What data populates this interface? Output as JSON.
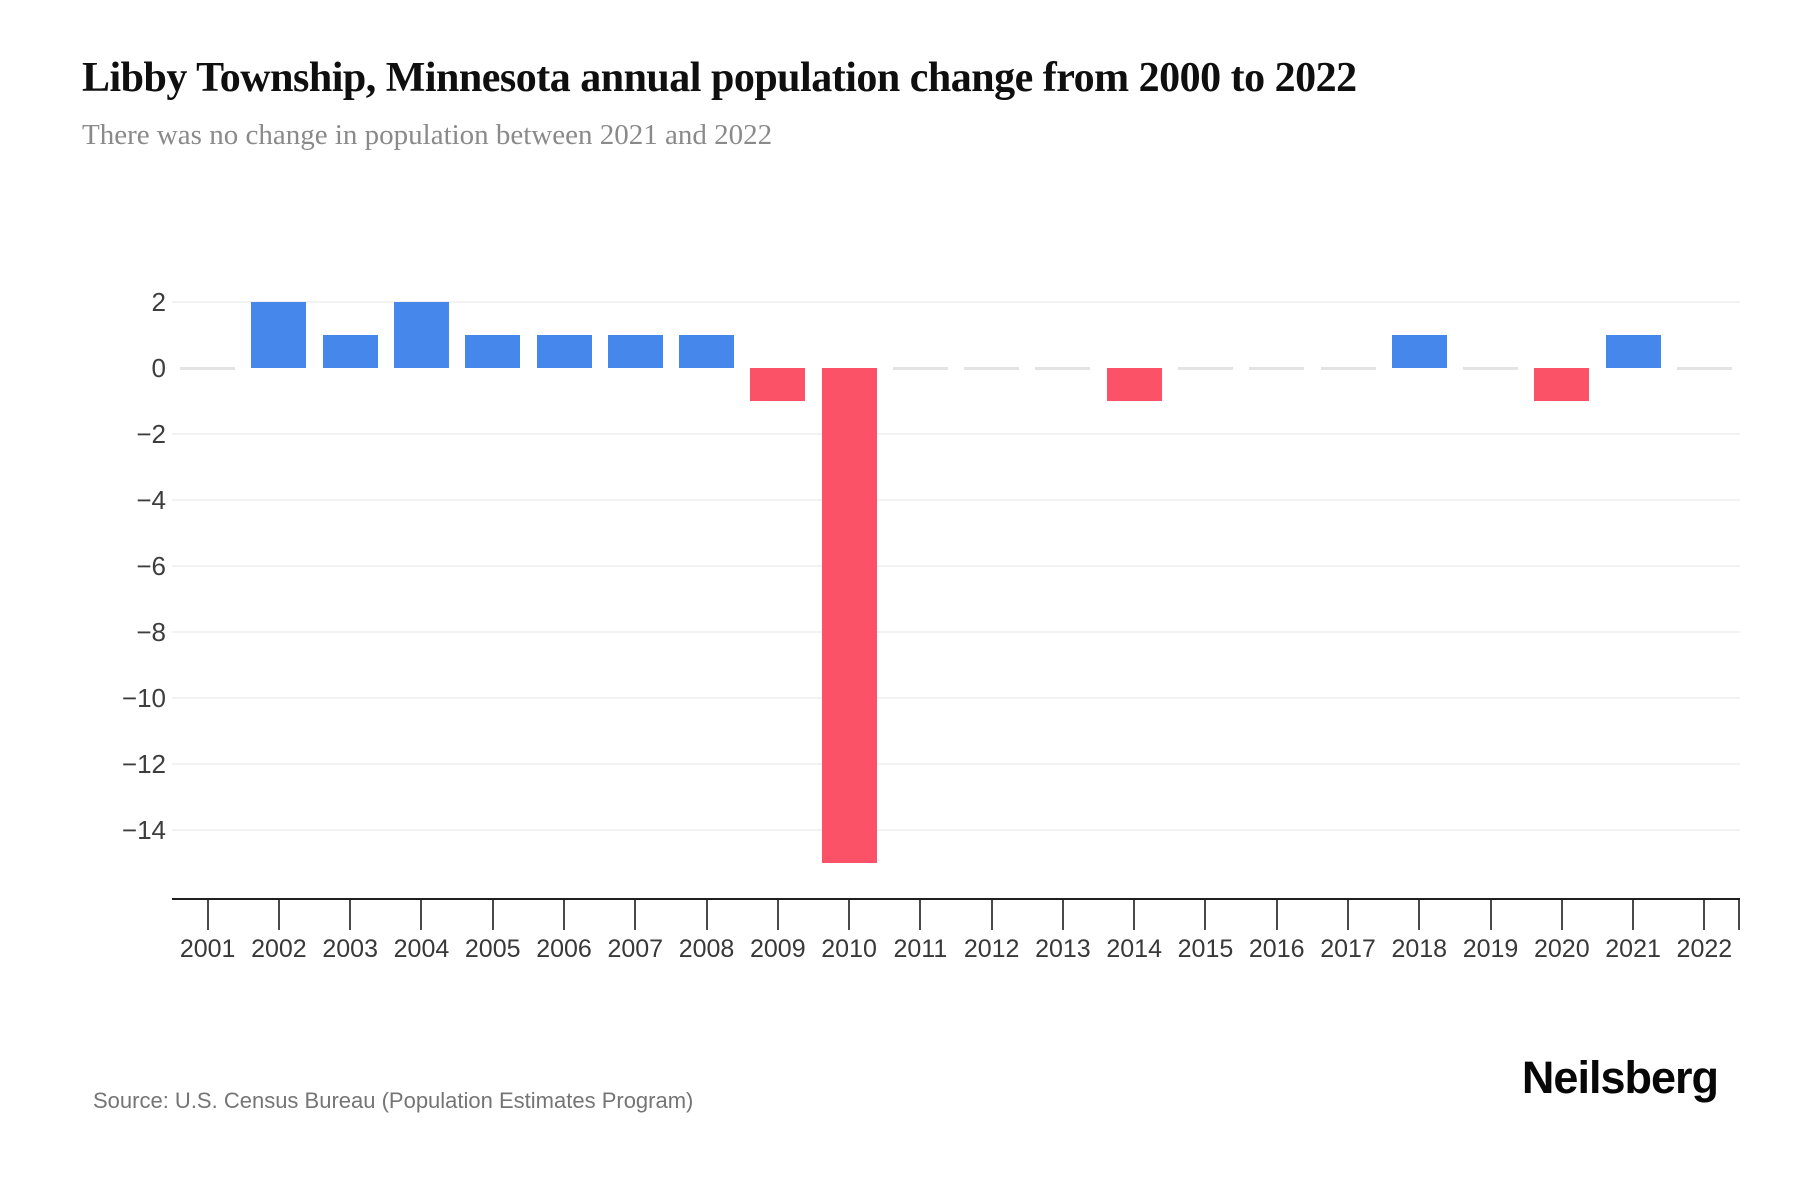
{
  "header": {
    "title": "Libby Township, Minnesota annual population change from 2000 to 2022",
    "subtitle": "There was no change in population between 2021 and 2022"
  },
  "footer": {
    "source": "Source: U.S. Census Bureau (Population Estimates Program)",
    "brand": "Neilsberg"
  },
  "colors": {
    "positive_bar": "#4687EB",
    "negative_bar": "#FB5267",
    "zero_dash": "#E3E3E3",
    "gridline": "#F2F2F2",
    "axis_line": "#1F1F1F",
    "tick": "#4A4A4A",
    "title_text": "#0F0F0F",
    "subtitle_text": "#8A8A8A",
    "source_text": "#757575"
  },
  "chart_data": {
    "type": "bar",
    "title": "Libby Township, Minnesota annual population change from 2000 to 2022",
    "subtitle": "There was no change in population between 2021 and 2022",
    "xlabel": "",
    "ylabel": "",
    "categories": [
      "2001",
      "2002",
      "2003",
      "2004",
      "2005",
      "2006",
      "2007",
      "2008",
      "2009",
      "2010",
      "2011",
      "2012",
      "2013",
      "2014",
      "2015",
      "2016",
      "2017",
      "2018",
      "2019",
      "2020",
      "2021",
      "2022"
    ],
    "values": [
      0,
      2,
      1,
      2,
      1,
      1,
      1,
      1,
      -1,
      -15,
      0,
      0,
      0,
      -1,
      0,
      0,
      0,
      1,
      0,
      -1,
      1,
      0
    ],
    "yticks": [
      2,
      0,
      -2,
      -4,
      -6,
      -8,
      -10,
      -12,
      -14
    ],
    "ylim": [
      -16,
      2.6
    ],
    "grid": true,
    "legend": "none",
    "positive_color": "#4687EB",
    "negative_color": "#FB5267",
    "zero_marker": "light-gray-dash"
  }
}
